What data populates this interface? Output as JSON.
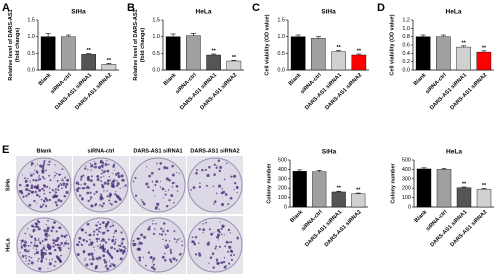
{
  "chart_data": [
    {
      "type": "bar",
      "panel": "A",
      "title": "SiHa",
      "ylabel": [
        "Relative level of DARS-AS1",
        "(fold change)"
      ],
      "categories": [
        "Blank",
        "siRNA-ctrl",
        "DARS-AS1 siRNA1",
        "DARS-AS1 siRNA2"
      ],
      "values": [
        1.0,
        1.0,
        0.47,
        0.17
      ],
      "errors": [
        0.1,
        0.05,
        0.02,
        0.03
      ],
      "colors": [
        "#000000",
        "#a0a0a0",
        "#555555",
        "#d0d0d0"
      ],
      "annotations": [
        null,
        null,
        "**",
        "**"
      ],
      "ylim": [
        0,
        1.5
      ],
      "yticks": [
        {
          "value": 0,
          "label": "0.0"
        },
        0.5,
        {
          "value": 1,
          "label": "1.0"
        },
        1.5
      ]
    },
    {
      "type": "bar",
      "panel": "B",
      "title": "HeLa",
      "ylabel": [
        "Relative level of DARS-AS1",
        "(fold change)"
      ],
      "categories": [
        "Blank",
        "siRNA-ctrl",
        "DARS-AS1 siRNA1",
        "DARS-AS1 siRNA2"
      ],
      "values": [
        1.0,
        1.03,
        0.45,
        0.27
      ],
      "errors": [
        0.08,
        0.07,
        0.03,
        0.02
      ],
      "colors": [
        "#000000",
        "#a0a0a0",
        "#555555",
        "#d0d0d0"
      ],
      "annotations": [
        null,
        null,
        "**",
        "**"
      ],
      "ylim": [
        0,
        1.5
      ],
      "yticks": [
        {
          "value": 0,
          "label": "0.0"
        },
        0.5,
        {
          "value": 1,
          "label": "1.0"
        },
        1.5
      ]
    },
    {
      "type": "bar",
      "panel": "C",
      "title": "SiHa",
      "ylabel": [
        "Cell viability (OD value)"
      ],
      "categories": [
        "Blank",
        "siRNA-ctrl",
        "DARS-AS1 siRNA1",
        "DARS-AS1 siRNA2"
      ],
      "values": [
        1.0,
        0.95,
        0.55,
        0.45
      ],
      "errors": [
        0.05,
        0.05,
        0.03,
        0.03
      ],
      "colors": [
        "#000000",
        "#a0a0a0",
        "#d0d0d0",
        "#ff0000"
      ],
      "annotations": [
        null,
        null,
        "**",
        "**"
      ],
      "ylim": [
        0,
        1.5
      ],
      "yticks": [
        {
          "value": 0,
          "label": "0.0"
        },
        0.5,
        {
          "value": 1,
          "label": "1.0"
        },
        1.5
      ]
    },
    {
      "type": "bar",
      "panel": "D",
      "title": "HeLa",
      "ylabel": [
        "Cell viability (OD value)"
      ],
      "categories": [
        "Blank",
        "siRNA-ctrl",
        "DARS-AS1 siRNA1",
        "DARS-AS1 siRNA2"
      ],
      "values": [
        0.8,
        0.8,
        0.55,
        0.43
      ],
      "errors": [
        0.04,
        0.04,
        0.03,
        0.03
      ],
      "colors": [
        "#000000",
        "#a0a0a0",
        "#d0d0d0",
        "#ff0000"
      ],
      "annotations": [
        null,
        null,
        "**",
        "**"
      ],
      "ylim": [
        0,
        1.2
      ],
      "yticks": [
        {
          "value": 0,
          "label": "0.0"
        },
        0.2,
        0.4,
        0.6,
        0.8,
        {
          "value": 1,
          "label": "1.0"
        },
        1.2
      ]
    },
    {
      "type": "bar",
      "title": "SiHa",
      "ylabel": [
        "Colony number"
      ],
      "categories": [
        "Blank",
        "siRNA-ctrl",
        "DARS-AS1 siRNA1",
        "DARS-AS1 siRNA2"
      ],
      "values": [
        380,
        375,
        160,
        140
      ],
      "errors": [
        15,
        15,
        8,
        8
      ],
      "colors": [
        "#000000",
        "#a0a0a0",
        "#555555",
        "#d0d0d0"
      ],
      "annotations": [
        null,
        null,
        "**",
        "**"
      ],
      "ylim": [
        0,
        500
      ],
      "yticks": [
        0,
        100,
        200,
        300,
        400,
        500
      ]
    },
    {
      "type": "bar",
      "title": "HeLa",
      "ylabel": [
        "Colony number"
      ],
      "categories": [
        "Blank",
        "siRNA-ctrl",
        "DARS-AS1 siRNA1",
        "DARS-AS1 siRNA2"
      ],
      "values": [
        405,
        400,
        205,
        190
      ],
      "errors": [
        12,
        12,
        8,
        8
      ],
      "colors": [
        "#000000",
        "#a0a0a0",
        "#555555",
        "#d0d0d0"
      ],
      "annotations": [
        null,
        null,
        "**",
        "**"
      ],
      "ylim": [
        0,
        500
      ],
      "yticks": [
        0,
        100,
        200,
        300,
        400,
        500
      ]
    }
  ],
  "colony_images": {
    "panel": "E",
    "columns": [
      "Blank",
      "siRNA-ctrl",
      "DARS-AS1 siRNA1",
      "DARS-AS1 siRNA2"
    ],
    "rows": [
      "SiHa",
      "HeLa"
    ]
  }
}
